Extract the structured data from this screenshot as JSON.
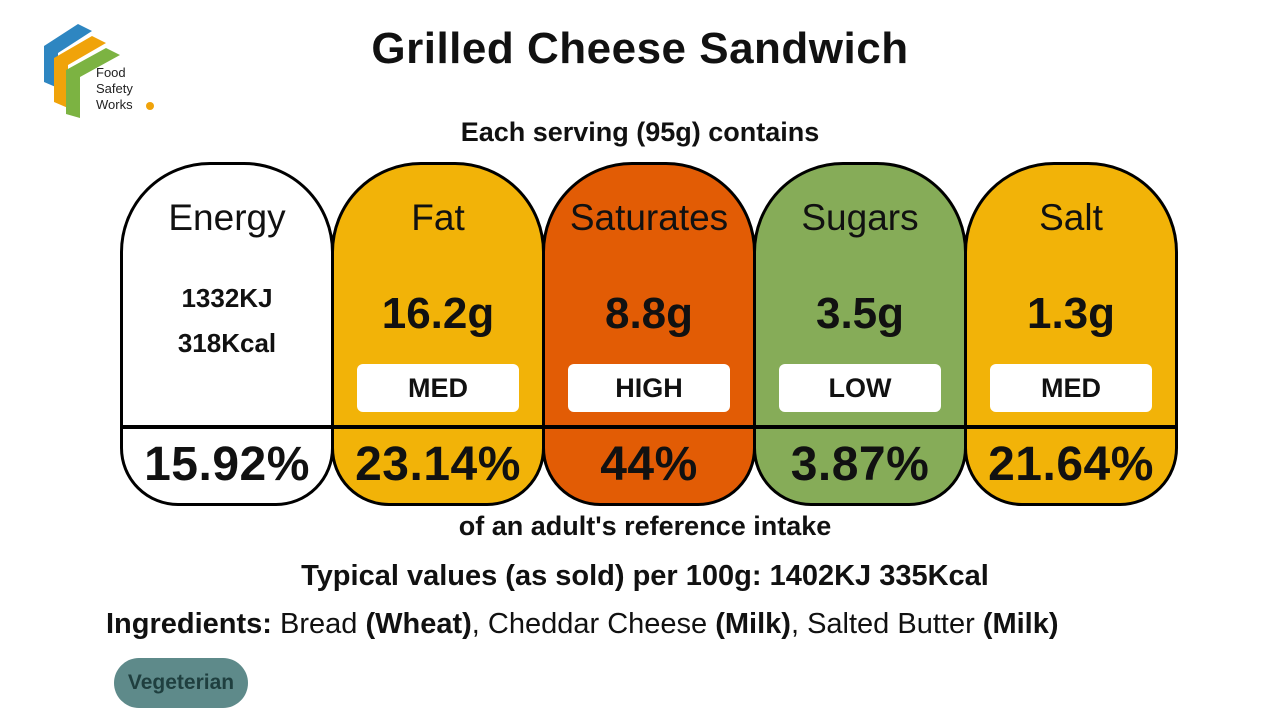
{
  "brand": {
    "lines": [
      "Food",
      "Safety",
      "Works"
    ],
    "colors": {
      "blue": "#2e86c1",
      "orange": "#f0a30a",
      "green": "#7cb342",
      "dot": "#f0a30a"
    }
  },
  "title": "Grilled Cheese Sandwich",
  "serving_text": "Each serving (95g) contains",
  "nutrients": [
    {
      "name": "Energy",
      "value_lines": [
        "1332KJ",
        "318Kcal"
      ],
      "level": "",
      "percent": "15.92%",
      "color": "#ffffff"
    },
    {
      "name": "Fat",
      "value": "16.2g",
      "level": "MED",
      "percent": "23.14%",
      "color": "#f2b308"
    },
    {
      "name": "Saturates",
      "value": "8.8g",
      "level": "HIGH",
      "percent": "44%",
      "color": "#e25c05"
    },
    {
      "name": "Sugars",
      "value": "3.5g",
      "level": "LOW",
      "percent": "3.87%",
      "color": "#86ac58"
    },
    {
      "name": "Salt",
      "value": "1.3g",
      "level": "MED",
      "percent": "21.64%",
      "color": "#f2b308"
    }
  ],
  "reference_text": "of an adult's reference intake",
  "typical_values": "Typical values (as sold) per 100g: 1402KJ 335Kcal",
  "ingredients": {
    "label": "Ingredients:",
    "parts": [
      {
        "text": " Bread ",
        "bold": false
      },
      {
        "text": "(Wheat)",
        "bold": true
      },
      {
        "text": ", Cheddar Cheese ",
        "bold": false
      },
      {
        "text": "(Milk)",
        "bold": true
      },
      {
        "text": ", Salted Butter ",
        "bold": false
      },
      {
        "text": "(Milk)",
        "bold": true
      }
    ]
  },
  "badge": {
    "label": "Vegeterian",
    "color": "#5e8a8a",
    "text_color": "#1f3f3f"
  }
}
